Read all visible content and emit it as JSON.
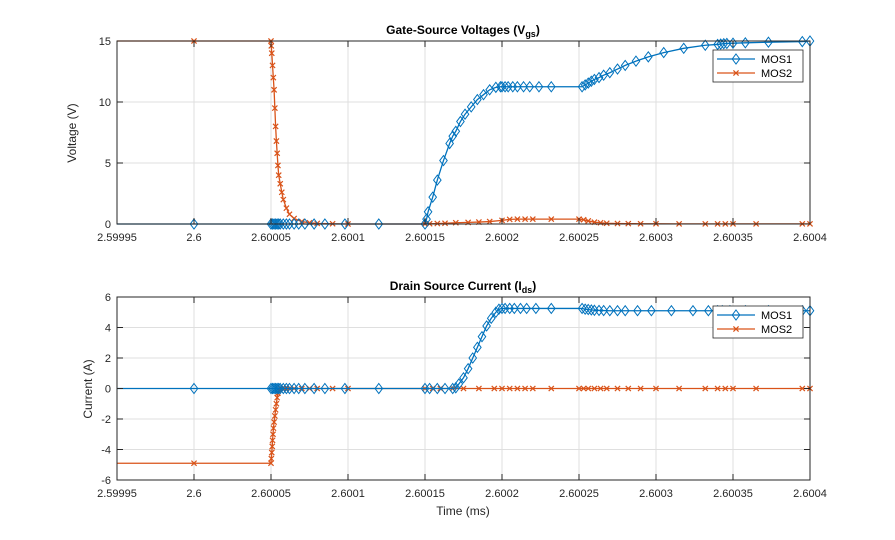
{
  "chart_data": [
    {
      "type": "line",
      "title": "Gate-Source  Voltages  (V",
      "title_sub": "gs",
      "title_close": ")",
      "xlabel": "",
      "ylabel": "Voltage (V)",
      "xlim": [
        2.59995,
        2.6004
      ],
      "ylim": [
        0,
        15
      ],
      "grid": true,
      "legend_position": "top-right",
      "x_ticks": [
        "2.59995",
        "2.6",
        "2.60005",
        "2.6001",
        "2.60015",
        "2.6002",
        "2.60025",
        "2.6003",
        "2.60035",
        "2.6004"
      ],
      "x_tick_values": [
        2.59995,
        2.6,
        2.60005,
        2.6001,
        2.60015,
        2.6002,
        2.60025,
        2.6003,
        2.60035,
        2.6004
      ],
      "y_ticks": [
        "0",
        "5",
        "10",
        "15"
      ],
      "y_tick_values": [
        0,
        5,
        10,
        15
      ],
      "series": [
        {
          "name": "MOS1",
          "color": "#0072BD",
          "marker": "diamond",
          "x": [
            2.59995,
            2.6,
            2.60005,
            2.600051,
            2.600052,
            2.600053,
            2.600054,
            2.600055,
            2.600056,
            2.600058,
            2.60006,
            2.600062,
            2.600065,
            2.600068,
            2.600072,
            2.600078,
            2.600085,
            2.600098,
            2.60012,
            2.60015,
            2.600151,
            2.600152,
            2.600155,
            2.600158,
            2.600162,
            2.600166,
            2.600168,
            2.60017,
            2.600173,
            2.600176,
            2.60018,
            2.600184,
            2.600188,
            2.600192,
            2.600196,
            2.600199,
            2.6002,
            2.600202,
            2.600204,
            2.600207,
            2.60021,
            2.600214,
            2.600218,
            2.600224,
            2.600232,
            2.600252,
            2.600254,
            2.600256,
            2.600258,
            2.60026,
            2.600263,
            2.600266,
            2.60027,
            2.600275,
            2.60028,
            2.600287,
            2.600295,
            2.600305,
            2.600318,
            2.600332,
            2.60034,
            2.600342,
            2.600344,
            2.600346,
            2.60035,
            2.600358,
            2.600373,
            2.600395,
            2.6004
          ],
          "y": [
            0,
            0,
            0,
            0,
            0,
            0,
            0,
            0,
            0,
            0,
            0,
            0,
            0,
            0,
            0,
            0,
            0,
            0,
            0,
            0,
            0.4,
            1.0,
            2.2,
            3.6,
            5.2,
            6.6,
            7.2,
            7.6,
            8.4,
            9.0,
            9.6,
            10.2,
            10.6,
            11.0,
            11.2,
            11.25,
            11.25,
            11.25,
            11.25,
            11.25,
            11.25,
            11.25,
            11.25,
            11.25,
            11.25,
            11.25,
            11.4,
            11.55,
            11.7,
            11.85,
            12.0,
            12.2,
            12.4,
            12.7,
            13.0,
            13.35,
            13.7,
            14.05,
            14.4,
            14.65,
            14.72,
            14.75,
            14.78,
            14.8,
            14.82,
            14.85,
            14.9,
            14.95,
            15.0
          ]
        },
        {
          "name": "MOS2",
          "color": "#D95319",
          "marker": "x",
          "x": [
            2.59995,
            2.6,
            2.60005,
            2.6000502,
            2.6000505,
            2.600051,
            2.6000515,
            2.600052,
            2.6000525,
            2.600053,
            2.6000535,
            2.600054,
            2.6000545,
            2.600055,
            2.600056,
            2.600057,
            2.600058,
            2.60006,
            2.600062,
            2.600065,
            2.60007,
            2.600075,
            2.60008,
            2.60009,
            2.6001,
            2.60015,
            2.600153,
            2.600158,
            2.600163,
            2.60017,
            2.600178,
            2.600185,
            2.600192,
            2.6002,
            2.600205,
            2.60021,
            2.600215,
            2.60022,
            2.600232,
            2.60025,
            2.600253,
            2.600256,
            2.60026,
            2.600264,
            2.600268,
            2.600275,
            2.600282,
            2.60029,
            2.6003,
            2.600315,
            2.600332,
            2.60034,
            2.600345,
            2.60035,
            2.600365,
            2.600395,
            2.6004
          ],
          "y": [
            15,
            15,
            15,
            14.6,
            14,
            13,
            12,
            11,
            9.5,
            8,
            6.8,
            5.8,
            4.8,
            4.0,
            3.3,
            2.6,
            2.0,
            1.3,
            0.8,
            0.45,
            0.2,
            0.1,
            0.05,
            0.02,
            0,
            0,
            0.02,
            0.04,
            0.06,
            0.1,
            0.13,
            0.16,
            0.2,
            0.3,
            0.38,
            0.4,
            0.4,
            0.4,
            0.4,
            0.4,
            0.35,
            0.25,
            0.15,
            0.1,
            0.06,
            0.04,
            0.03,
            0.02,
            0.02,
            0.01,
            0.01,
            0.01,
            0.01,
            0.01,
            0.01,
            0.01,
            0.01
          ]
        }
      ]
    },
    {
      "type": "line",
      "title": "Drain  Source  Current  (I",
      "title_sub": "ds",
      "title_close": ")",
      "xlabel": "Time (ms)",
      "ylabel": "Current (A)",
      "xlim": [
        2.59995,
        2.6004
      ],
      "ylim": [
        -6,
        6
      ],
      "grid": true,
      "legend_position": "top-right",
      "x_ticks": [
        "2.59995",
        "2.6",
        "2.60005",
        "2.6001",
        "2.60015",
        "2.6002",
        "2.60025",
        "2.6003",
        "2.60035",
        "2.6004"
      ],
      "x_tick_values": [
        2.59995,
        2.6,
        2.60005,
        2.6001,
        2.60015,
        2.6002,
        2.60025,
        2.6003,
        2.60035,
        2.6004
      ],
      "y_ticks": [
        "-6",
        "-4",
        "-2",
        "0",
        "2",
        "4",
        "6"
      ],
      "y_tick_values": [
        -6,
        -4,
        -2,
        0,
        2,
        4,
        6
      ],
      "series": [
        {
          "name": "MOS1",
          "color": "#0072BD",
          "marker": "diamond",
          "x": [
            2.59995,
            2.6,
            2.60005,
            2.600051,
            2.600052,
            2.600053,
            2.600054,
            2.600055,
            2.600056,
            2.600058,
            2.60006,
            2.600062,
            2.600065,
            2.600068,
            2.600072,
            2.600078,
            2.600085,
            2.600098,
            2.60012,
            2.60015,
            2.600153,
            2.600158,
            2.600163,
            2.600168,
            2.60017,
            2.600172,
            2.600175,
            2.600178,
            2.600181,
            2.600184,
            2.600187,
            2.60019,
            2.600193,
            2.600196,
            2.600198,
            2.6002,
            2.600202,
            2.600205,
            2.600208,
            2.600212,
            2.600216,
            2.600222,
            2.600232,
            2.600252,
            2.600254,
            2.600256,
            2.600258,
            2.60026,
            2.600263,
            2.600266,
            2.60027,
            2.600275,
            2.60028,
            2.600288,
            2.600297,
            2.60031,
            2.600324,
            2.600334,
            2.60034,
            2.600343,
            2.600348,
            2.600358,
            2.600373,
            2.600395,
            2.6004
          ],
          "y": [
            0,
            0,
            0,
            0,
            0,
            0,
            0,
            0,
            0,
            0,
            0,
            0,
            0,
            0,
            0,
            0,
            0,
            0,
            0,
            0,
            0,
            0,
            0,
            0,
            0.05,
            0.3,
            0.7,
            1.3,
            2.0,
            2.7,
            3.4,
            4.1,
            4.6,
            5.0,
            5.2,
            5.25,
            5.25,
            5.25,
            5.25,
            5.25,
            5.25,
            5.25,
            5.25,
            5.25,
            5.2,
            5.18,
            5.15,
            5.13,
            5.12,
            5.11,
            5.1,
            5.1,
            5.1,
            5.1,
            5.1,
            5.1,
            5.1,
            5.1,
            5.1,
            5.1,
            5.1,
            5.1,
            5.1,
            5.1,
            5.1
          ]
        },
        {
          "name": "MOS2",
          "color": "#D95319",
          "marker": "x",
          "x": [
            2.59995,
            2.6,
            2.60005,
            2.6000502,
            2.6000505,
            2.6000508,
            2.600051,
            2.6000513,
            2.6000516,
            2.600052,
            2.6000525,
            2.600053,
            2.6000535,
            2.600054,
            2.6000545,
            2.600055,
            2.600056,
            2.600058,
            2.60006,
            2.600062,
            2.600065,
            2.60007,
            2.600075,
            2.60008,
            2.60009,
            2.6001,
            2.60015,
            2.600155,
            2.60016,
            2.600168,
            2.600175,
            2.600185,
            2.600195,
            2.6002,
            2.600205,
            2.60021,
            2.600215,
            2.60022,
            2.600232,
            2.60025,
            2.600253,
            2.600256,
            2.60026,
            2.600264,
            2.600268,
            2.600275,
            2.600282,
            2.60029,
            2.6003,
            2.600315,
            2.600332,
            2.60034,
            2.600345,
            2.60035,
            2.600365,
            2.600395,
            2.6004
          ],
          "y": [
            -4.9,
            -4.9,
            -4.9,
            -4.6,
            -4.2,
            -3.8,
            -3.4,
            -3.0,
            -2.6,
            -2.2,
            -1.8,
            -1.4,
            -1.0,
            -0.6,
            -0.3,
            -0.1,
            0,
            0,
            0,
            0,
            0,
            0,
            0,
            0,
            0,
            0,
            0,
            0,
            0,
            0,
            0,
            0,
            0,
            0,
            0,
            0,
            0,
            0,
            0,
            0,
            0,
            0,
            0,
            0,
            0,
            0,
            0,
            0,
            0,
            0,
            0,
            0,
            0,
            0,
            0,
            0,
            0
          ]
        }
      ]
    }
  ]
}
